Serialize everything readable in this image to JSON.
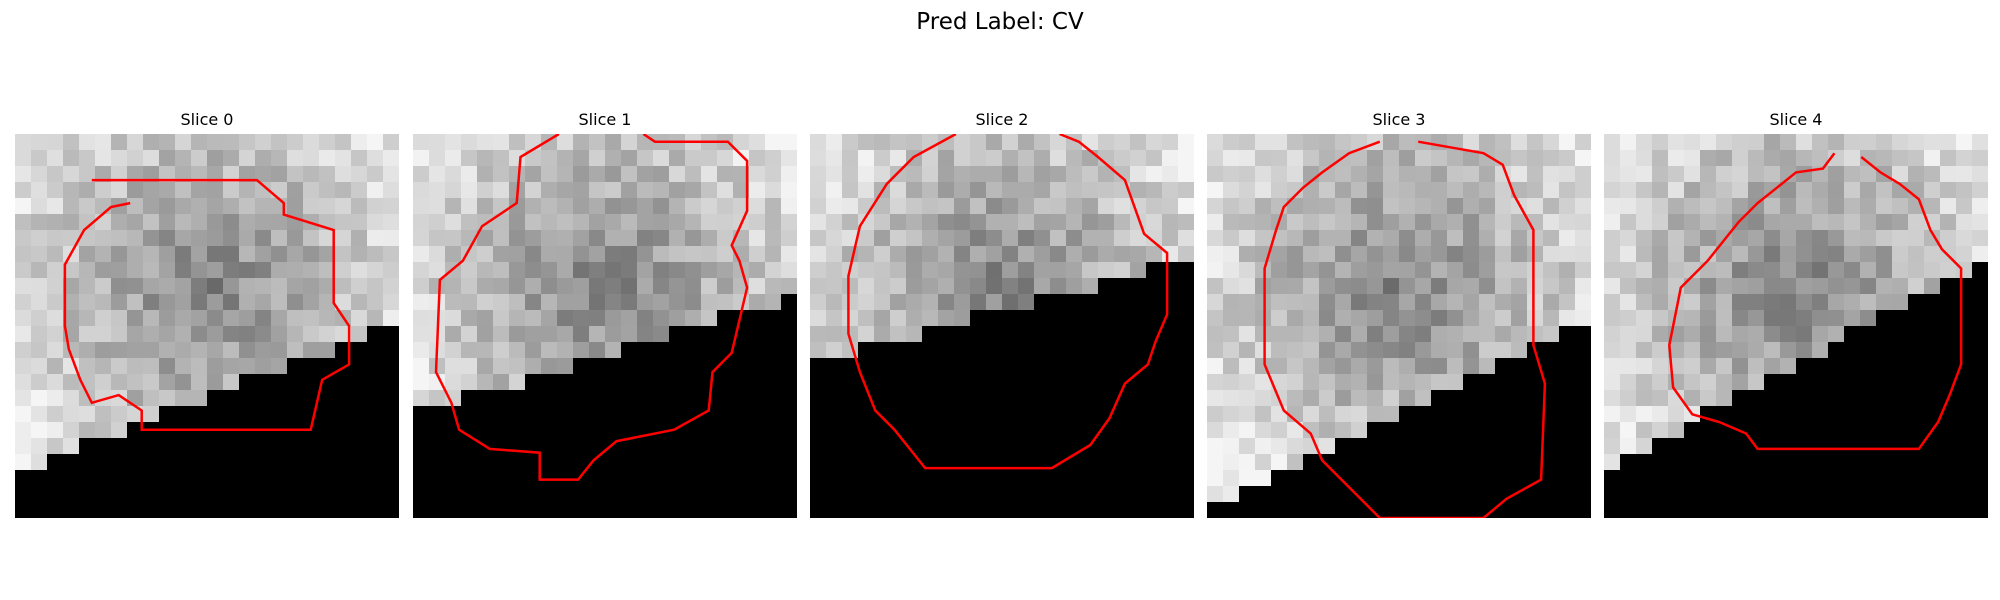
{
  "figure": {
    "title": "Pred Label: CV"
  },
  "panels": [
    {
      "title": "Slice 0",
      "seed": 11,
      "mask_line": [
        [
          0,
          0.88
        ],
        [
          1,
          0.49
        ]
      ],
      "contour": [
        [
          0.2,
          0.12
        ],
        [
          0.63,
          0.12
        ],
        [
          0.7,
          0.18
        ],
        [
          0.7,
          0.21
        ],
        [
          0.83,
          0.25
        ],
        [
          0.83,
          0.44
        ],
        [
          0.87,
          0.5
        ],
        [
          0.87,
          0.6
        ],
        [
          0.8,
          0.64
        ],
        [
          0.77,
          0.77
        ],
        [
          0.33,
          0.77
        ],
        [
          0.33,
          0.72
        ],
        [
          0.27,
          0.68
        ],
        [
          0.2,
          0.7
        ],
        [
          0.17,
          0.64
        ],
        [
          0.14,
          0.56
        ],
        [
          0.13,
          0.5
        ],
        [
          0.13,
          0.34
        ],
        [
          0.18,
          0.25
        ],
        [
          0.25,
          0.19
        ],
        [
          0.3,
          0.18
        ]
      ]
    },
    {
      "title": "Slice 1",
      "seed": 23,
      "mask_line": [
        [
          0,
          0.73
        ],
        [
          1,
          0.42
        ]
      ],
      "contour": [
        [
          0.38,
          0.0
        ],
        [
          0.28,
          0.06
        ],
        [
          0.27,
          0.18
        ],
        [
          0.18,
          0.24
        ],
        [
          0.13,
          0.33
        ],
        [
          0.07,
          0.38
        ],
        [
          0.06,
          0.62
        ],
        [
          0.1,
          0.7
        ],
        [
          0.12,
          0.77
        ],
        [
          0.2,
          0.82
        ],
        [
          0.33,
          0.83
        ],
        [
          0.33,
          0.9
        ],
        [
          0.43,
          0.9
        ],
        [
          0.47,
          0.85
        ],
        [
          0.53,
          0.8
        ],
        [
          0.68,
          0.77
        ],
        [
          0.77,
          0.72
        ],
        [
          0.78,
          0.62
        ],
        [
          0.83,
          0.57
        ],
        [
          0.87,
          0.4
        ],
        [
          0.85,
          0.33
        ],
        [
          0.83,
          0.29
        ],
        [
          0.87,
          0.2
        ],
        [
          0.87,
          0.07
        ],
        [
          0.82,
          0.02
        ],
        [
          0.63,
          0.02
        ],
        [
          0.6,
          0.0
        ]
      ]
    },
    {
      "title": "Slice 2",
      "seed": 37,
      "mask_line": [
        [
          0,
          0.6
        ],
        [
          1,
          0.32
        ]
      ],
      "contour": [
        [
          0.38,
          0.0
        ],
        [
          0.27,
          0.06
        ],
        [
          0.2,
          0.13
        ],
        [
          0.13,
          0.24
        ],
        [
          0.1,
          0.37
        ],
        [
          0.1,
          0.52
        ],
        [
          0.13,
          0.62
        ],
        [
          0.17,
          0.72
        ],
        [
          0.22,
          0.77
        ],
        [
          0.3,
          0.87
        ],
        [
          0.63,
          0.87
        ],
        [
          0.73,
          0.81
        ],
        [
          0.78,
          0.74
        ],
        [
          0.82,
          0.65
        ],
        [
          0.88,
          0.6
        ],
        [
          0.9,
          0.54
        ],
        [
          0.93,
          0.47
        ],
        [
          0.93,
          0.31
        ],
        [
          0.87,
          0.26
        ],
        [
          0.82,
          0.12
        ],
        [
          0.75,
          0.06
        ],
        [
          0.7,
          0.02
        ],
        [
          0.65,
          0.0
        ]
      ]
    },
    {
      "title": "Slice 3",
      "seed": 53,
      "mask_line": [
        [
          0,
          0.97
        ],
        [
          1,
          0.48
        ]
      ],
      "contour": [
        [
          0.45,
          0.02
        ],
        [
          0.37,
          0.05
        ],
        [
          0.3,
          0.1
        ],
        [
          0.25,
          0.14
        ],
        [
          0.2,
          0.19
        ],
        [
          0.18,
          0.25
        ],
        [
          0.15,
          0.35
        ],
        [
          0.15,
          0.6
        ],
        [
          0.2,
          0.72
        ],
        [
          0.27,
          0.78
        ],
        [
          0.3,
          0.85
        ],
        [
          0.35,
          0.9
        ],
        [
          0.4,
          0.95
        ],
        [
          0.45,
          1.0
        ],
        [
          0.72,
          1.0
        ],
        [
          0.78,
          0.95
        ],
        [
          0.87,
          0.9
        ],
        [
          0.88,
          0.65
        ],
        [
          0.85,
          0.55
        ],
        [
          0.85,
          0.25
        ],
        [
          0.8,
          0.16
        ],
        [
          0.77,
          0.08
        ],
        [
          0.72,
          0.05
        ],
        [
          0.55,
          0.02
        ]
      ]
    },
    {
      "title": "Slice 4",
      "seed": 71,
      "mask_line": [
        [
          0,
          0.88
        ],
        [
          1,
          0.32
        ]
      ],
      "contour": [
        [
          0.6,
          0.05
        ],
        [
          0.57,
          0.09
        ],
        [
          0.5,
          0.1
        ],
        [
          0.45,
          0.14
        ],
        [
          0.4,
          0.18
        ],
        [
          0.35,
          0.23
        ],
        [
          0.27,
          0.33
        ],
        [
          0.2,
          0.4
        ],
        [
          0.17,
          0.55
        ],
        [
          0.18,
          0.66
        ],
        [
          0.23,
          0.73
        ],
        [
          0.3,
          0.75
        ],
        [
          0.37,
          0.78
        ],
        [
          0.4,
          0.82
        ],
        [
          0.82,
          0.82
        ],
        [
          0.87,
          0.75
        ],
        [
          0.9,
          0.68
        ],
        [
          0.93,
          0.6
        ],
        [
          0.93,
          0.35
        ],
        [
          0.88,
          0.3
        ],
        [
          0.85,
          0.25
        ],
        [
          0.82,
          0.17
        ],
        [
          0.77,
          0.13
        ],
        [
          0.72,
          0.1
        ],
        [
          0.67,
          0.06
        ]
      ]
    }
  ],
  "colors": {
    "contour": "#ff0000",
    "mask": "#000000"
  }
}
